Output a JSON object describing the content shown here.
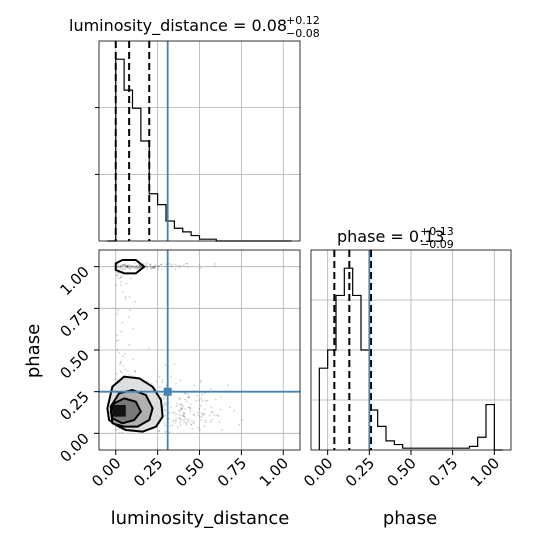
{
  "chart_data": {
    "type": "corner",
    "parameters": [
      "luminosity_distance",
      "phase"
    ],
    "truth": {
      "luminosity_distance": 0.31,
      "phase": 0.25
    },
    "colors": {
      "truth": "#4682b4",
      "hist": "#000000",
      "grid": "#b0b0b0"
    },
    "grid": true,
    "panels": {
      "ld_hist": {
        "title_main": "luminosity_distance = 0.08",
        "title_sup": "+0.12",
        "title_sub": "−0.08",
        "quantiles": [
          0.0,
          0.08,
          0.2
        ],
        "xlim": [
          -0.1,
          1.1
        ],
        "bins": [
          -0.05,
          0.0,
          0.05,
          0.1,
          0.15,
          0.2,
          0.25,
          0.3,
          0.35,
          0.4,
          0.45,
          0.5,
          0.55,
          0.6,
          0.65,
          0.7,
          0.75,
          0.8,
          0.85,
          0.9,
          0.95,
          1.0,
          1.05
        ],
        "counts": [
          0,
          1.0,
          0.83,
          0.73,
          0.55,
          0.26,
          0.2,
          0.11,
          0.07,
          0.05,
          0.03,
          0.01,
          0.01,
          0.0,
          0,
          0,
          0,
          0,
          0,
          0,
          0,
          0
        ]
      },
      "phase_hist": {
        "title_main": "phase = 0.13",
        "title_sup": "+0.13",
        "title_sub": "−0.09",
        "quantiles": [
          0.04,
          0.13,
          0.26
        ],
        "xlim": [
          -0.1,
          1.1
        ],
        "bins": [
          -0.05,
          0.0,
          0.05,
          0.1,
          0.15,
          0.2,
          0.25,
          0.3,
          0.35,
          0.4,
          0.45,
          0.5,
          0.55,
          0.6,
          0.65,
          0.7,
          0.75,
          0.8,
          0.85,
          0.9,
          0.95,
          1.0,
          1.05
        ],
        "counts": [
          0.45,
          0.55,
          0.85,
          1.0,
          0.85,
          0.55,
          0.22,
          0.13,
          0.05,
          0.03,
          0.01,
          0.01,
          0.01,
          0.01,
          0.01,
          0.01,
          0.01,
          0.01,
          0.02,
          0.07,
          0.25,
          0
        ]
      },
      "joint": {
        "xlim": [
          -0.1,
          1.1
        ],
        "ylim": [
          -0.1,
          1.1
        ],
        "contours": [
          {
            "level": 1,
            "points": [
              [
                0.0,
                0.05
              ],
              [
                0.06,
                0.02
              ],
              [
                0.16,
                0.01
              ],
              [
                0.24,
                0.04
              ],
              [
                0.28,
                0.1
              ],
              [
                0.27,
                0.2
              ],
              [
                0.22,
                0.28
              ],
              [
                0.14,
                0.33
              ],
              [
                0.05,
                0.34
              ],
              [
                -0.02,
                0.28
              ],
              [
                -0.05,
                0.15
              ],
              [
                -0.04,
                0.08
              ]
            ]
          },
          {
            "level": 2,
            "points": [
              [
                -0.02,
                0.06
              ],
              [
                0.05,
                0.04
              ],
              [
                0.13,
                0.04
              ],
              [
                0.2,
                0.08
              ],
              [
                0.22,
                0.15
              ],
              [
                0.18,
                0.23
              ],
              [
                0.1,
                0.26
              ],
              [
                0.02,
                0.24
              ],
              [
                -0.03,
                0.16
              ]
            ]
          },
          {
            "level": 3,
            "points": [
              [
                -0.02,
                0.09
              ],
              [
                0.04,
                0.06
              ],
              [
                0.11,
                0.08
              ],
              [
                0.15,
                0.13
              ],
              [
                0.12,
                0.19
              ],
              [
                0.05,
                0.21
              ],
              [
                -0.01,
                0.18
              ],
              [
                -0.03,
                0.13
              ]
            ]
          },
          {
            "level": 4,
            "points": [
              [
                0.0,
                0.98
              ],
              [
                0.05,
                0.96
              ],
              [
                0.12,
                0.96
              ],
              [
                0.17,
                1.0
              ],
              [
                0.12,
                1.04
              ],
              [
                0.04,
                1.04
              ],
              [
                0.0,
                1.02
              ]
            ]
          }
        ]
      }
    },
    "xticks": [
      "0.00",
      "0.25",
      "0.50",
      "0.75",
      "1.00"
    ],
    "yticks": [
      "0.00",
      "0.25",
      "0.50",
      "0.75",
      "1.00"
    ],
    "tick_values": [
      0.0,
      0.25,
      0.5,
      0.75,
      1.0
    ],
    "xlabel_left": "luminosity_distance",
    "xlabel_right": "phase",
    "ylabel": "phase"
  }
}
